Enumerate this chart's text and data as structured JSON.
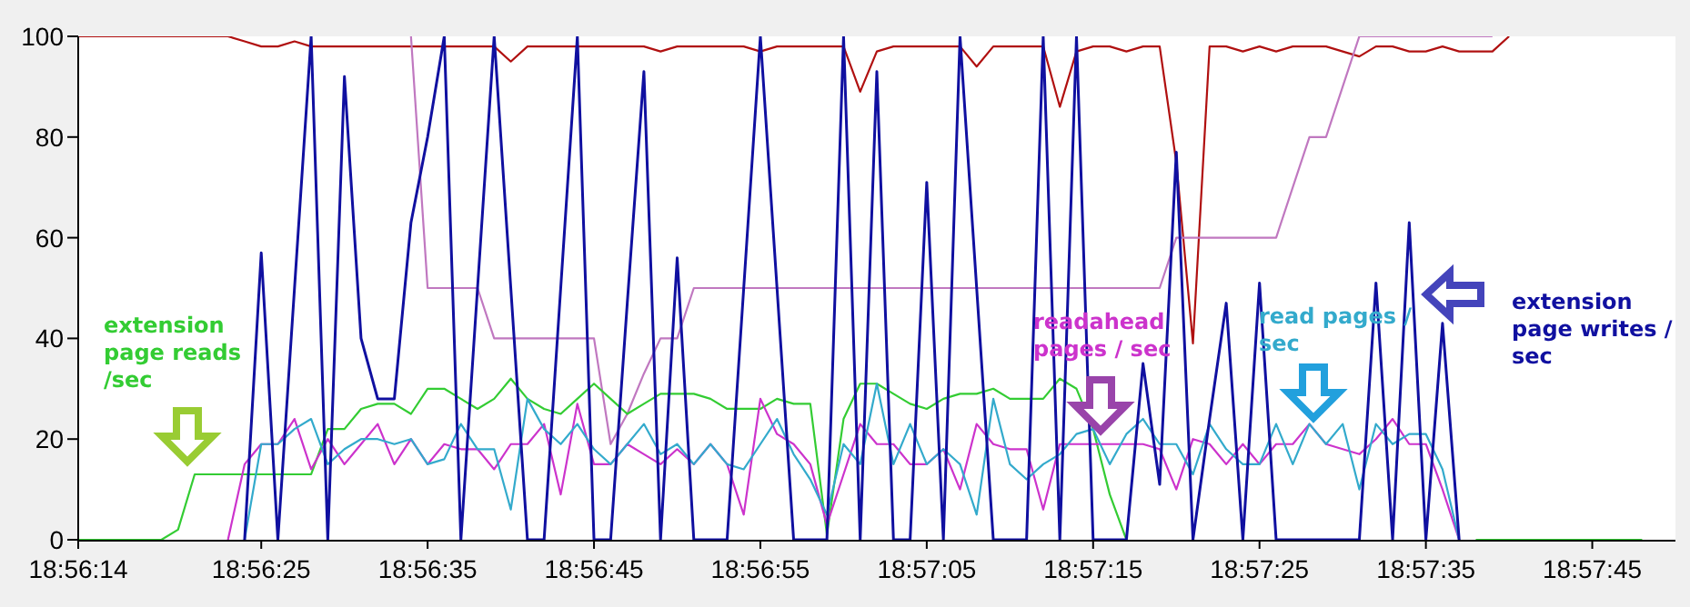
{
  "chart_data": {
    "type": "line",
    "categories": [
      "18:56:14",
      null,
      null,
      null,
      null,
      null,
      null,
      null,
      null,
      null,
      null,
      "18:56:25",
      null,
      null,
      null,
      null,
      null,
      null,
      null,
      null,
      null,
      "18:56:35",
      null,
      null,
      null,
      null,
      null,
      null,
      null,
      null,
      null,
      "18:56:45",
      null,
      null,
      null,
      null,
      null,
      null,
      null,
      null,
      null,
      "18:56:55",
      null,
      null,
      null,
      null,
      null,
      null,
      null,
      null,
      null,
      "18:57:05",
      null,
      null,
      null,
      null,
      null,
      null,
      null,
      null,
      null,
      "18:57:15",
      null,
      null,
      null,
      null,
      null,
      null,
      null,
      null,
      null,
      "18:57:25",
      null,
      null,
      null,
      null,
      null,
      null,
      null,
      null,
      null,
      "18:57:35",
      null,
      null,
      null,
      null,
      null,
      null,
      null,
      null,
      null,
      "18:57:45",
      null,
      null,
      null,
      null,
      null
    ],
    "series": [
      {
        "color": "#b01010",
        "values": [
          100,
          100,
          100,
          100,
          100,
          100,
          100,
          100,
          100,
          100,
          99,
          98,
          98,
          99,
          98,
          98,
          98,
          98,
          98,
          98,
          98,
          98,
          98,
          98,
          98,
          98,
          95,
          98,
          98,
          98,
          98,
          98,
          98,
          98,
          98,
          97,
          98,
          98,
          98,
          98,
          98,
          97,
          98,
          98,
          98,
          98,
          98,
          89,
          97,
          98,
          98,
          98,
          98,
          98,
          94,
          98,
          98,
          98,
          98,
          86,
          97,
          98,
          98,
          97,
          98,
          98,
          75,
          39,
          98,
          98,
          97,
          98,
          97,
          98,
          98,
          98,
          97,
          96,
          98,
          98,
          97,
          97,
          98,
          97,
          97,
          97,
          100,
          null,
          null,
          null,
          null,
          null,
          null,
          null,
          null,
          null,
          null
        ]
      },
      {
        "color": "#c078c0",
        "values": [
          null,
          null,
          null,
          null,
          null,
          null,
          null,
          null,
          null,
          null,
          null,
          null,
          null,
          null,
          null,
          null,
          null,
          null,
          null,
          null,
          100,
          50,
          50,
          50,
          50,
          40,
          40,
          40,
          40,
          40,
          40,
          40,
          19,
          25,
          33,
          40,
          40,
          50,
          50,
          50,
          50,
          50,
          50,
          50,
          50,
          50,
          50,
          50,
          50,
          50,
          50,
          50,
          50,
          50,
          50,
          50,
          50,
          50,
          50,
          50,
          50,
          50,
          50,
          50,
          50,
          50,
          60,
          60,
          60,
          60,
          60,
          60,
          60,
          70,
          80,
          80,
          90,
          100,
          100,
          100,
          100,
          100,
          100,
          100,
          100,
          100,
          null,
          null,
          null,
          null,
          null,
          null,
          null,
          null,
          null,
          null,
          null
        ]
      },
      {
        "name": "extension page reads /sec",
        "color": "#33cc33",
        "values": [
          0,
          0,
          0,
          0,
          0,
          0,
          2,
          13,
          13,
          13,
          13,
          13,
          13,
          13,
          13,
          22,
          22,
          26,
          27,
          27,
          25,
          30,
          30,
          28,
          26,
          28,
          32,
          28,
          26,
          25,
          28,
          31,
          28,
          25,
          27,
          29,
          29,
          29,
          28,
          26,
          26,
          26,
          28,
          27,
          27,
          1,
          24,
          31,
          31,
          29,
          27,
          26,
          28,
          29,
          29,
          30,
          28,
          28,
          28,
          32,
          30,
          22,
          9,
          0,
          null,
          null,
          null,
          null,
          null,
          null,
          null,
          null,
          null,
          null,
          null,
          null,
          null,
          null,
          null,
          null,
          null,
          null,
          null,
          null,
          0,
          0,
          0,
          0,
          0,
          0,
          0,
          0,
          0,
          0,
          0,
          null,
          null
        ]
      },
      {
        "name": "readahead pages / sec",
        "color": "#cc33cc",
        "values": [
          null,
          null,
          null,
          null,
          null,
          null,
          null,
          null,
          null,
          0,
          15,
          19,
          19,
          24,
          14,
          20,
          15,
          19,
          23,
          15,
          20,
          15,
          19,
          18,
          18,
          14,
          19,
          19,
          23,
          9,
          27,
          15,
          15,
          19,
          17,
          15,
          18,
          15,
          19,
          15,
          5,
          28,
          21,
          19,
          15,
          3,
          13,
          23,
          19,
          19,
          15,
          15,
          18,
          10,
          23,
          19,
          18,
          18,
          6,
          19,
          19,
          19,
          19,
          19,
          19,
          18,
          10,
          20,
          19,
          15,
          19,
          15,
          19,
          19,
          23,
          19,
          18,
          17,
          20,
          24,
          19,
          19,
          10,
          0,
          null,
          null,
          null,
          null,
          null,
          null,
          null,
          null,
          null,
          null,
          null,
          null,
          null
        ]
      },
      {
        "name": "read pages / sec",
        "color": "#33aacc",
        "values": [
          null,
          null,
          null,
          null,
          null,
          null,
          null,
          null,
          null,
          null,
          0,
          19,
          19,
          22,
          24,
          15,
          18,
          20,
          20,
          19,
          20,
          15,
          16,
          23,
          18,
          18,
          6,
          28,
          22,
          19,
          23,
          18,
          15,
          19,
          23,
          17,
          19,
          15,
          19,
          15,
          14,
          19,
          24,
          17,
          12,
          5,
          19,
          15,
          31,
          15,
          23,
          15,
          18,
          15,
          5,
          28,
          15,
          12,
          15,
          17,
          21,
          22,
          15,
          21,
          24,
          19,
          19,
          13,
          23,
          18,
          15,
          15,
          23,
          15,
          23,
          19,
          23,
          10,
          23,
          19,
          21,
          21,
          14,
          0,
          null,
          null,
          null,
          null,
          null,
          null,
          null,
          null,
          null,
          null,
          null,
          null,
          null
        ]
      },
      {
        "name": "extension page writes / sec",
        "color": "#1010a0",
        "values": [
          null,
          null,
          null,
          null,
          null,
          null,
          null,
          null,
          null,
          null,
          0,
          57,
          0,
          50,
          100,
          0,
          92,
          40,
          28,
          28,
          63,
          80,
          100,
          0,
          50,
          100,
          50,
          0,
          0,
          50,
          100,
          0,
          0,
          47,
          93,
          0,
          56,
          0,
          0,
          0,
          50,
          100,
          50,
          0,
          0,
          0,
          100,
          0,
          93,
          0,
          0,
          71,
          0,
          100,
          50,
          0,
          0,
          0,
          100,
          0,
          100,
          0,
          0,
          0,
          35,
          11,
          77,
          0,
          24,
          47,
          0,
          51,
          0,
          0,
          0,
          0,
          0,
          0,
          51,
          0,
          63,
          0,
          43,
          0,
          null,
          null,
          null,
          null,
          null,
          null,
          null,
          null,
          null,
          null,
          null,
          null,
          null
        ]
      }
    ],
    "ylim": [
      0,
      100
    ],
    "yticks": [
      0,
      20,
      40,
      60,
      80,
      100
    ],
    "grid": false,
    "legend": false,
    "marker": "none",
    "line_style": "solid"
  }
}
